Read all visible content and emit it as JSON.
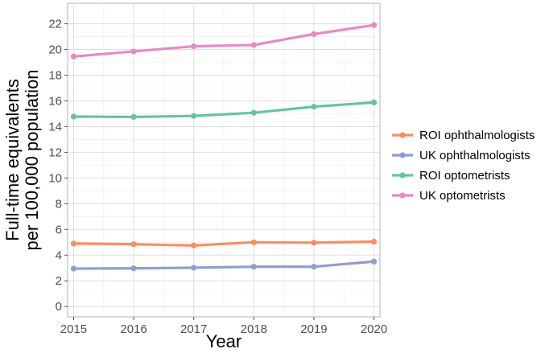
{
  "chart_data": {
    "type": "line",
    "xlabel": "Year",
    "ylabel_lines": [
      "Full-time equivalents",
      "per 100,000 population"
    ],
    "x": [
      2015,
      2016,
      2017,
      2018,
      2019,
      2020
    ],
    "xlim": [
      2014.9,
      2020.1
    ],
    "ylim": [
      -0.8,
      23.6
    ],
    "y_ticks": [
      0,
      2,
      4,
      6,
      8,
      10,
      12,
      14,
      16,
      18,
      20,
      22
    ],
    "grid": true,
    "legend_position": "right",
    "series": [
      {
        "name": "ROI ophthalmologists",
        "color": "#fc8d62",
        "values": [
          4.9,
          4.85,
          4.75,
          5.0,
          4.97,
          5.05
        ]
      },
      {
        "name": "UK ophthalmologists",
        "color": "#8da0cb",
        "values": [
          2.95,
          2.97,
          3.02,
          3.1,
          3.1,
          3.5
        ]
      },
      {
        "name": "ROI optometrists",
        "color": "#66c2a5",
        "values": [
          14.78,
          14.75,
          14.83,
          15.08,
          15.55,
          15.88
        ]
      },
      {
        "name": "UK optometrists",
        "color": "#e78ac3",
        "values": [
          19.45,
          19.85,
          20.25,
          20.35,
          21.2,
          21.9
        ]
      }
    ]
  }
}
